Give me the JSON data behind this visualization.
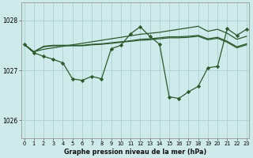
{
  "title": "Graphe pression niveau de la mer (hPa)",
  "bg_color": "#ceeaea",
  "grid_color": "#aed4d4",
  "line_color": "#2d5a2d",
  "marker_color": "#2d5a2d",
  "ylim": [
    1025.65,
    1028.35
  ],
  "yticks": [
    1026,
    1027,
    1028
  ],
  "xlim": [
    -0.3,
    23.3
  ],
  "xticks": [
    0,
    1,
    2,
    3,
    4,
    5,
    6,
    7,
    8,
    9,
    10,
    11,
    12,
    13,
    14,
    15,
    16,
    17,
    18,
    19,
    20,
    21,
    22,
    23
  ],
  "s_diagonal": [
    1027.52,
    1027.37,
    1027.42,
    1027.45,
    1027.48,
    1027.51,
    1027.54,
    1027.57,
    1027.6,
    1027.63,
    1027.66,
    1027.69,
    1027.72,
    1027.74,
    1027.76,
    1027.79,
    1027.82,
    1027.85,
    1027.88,
    1027.78,
    1027.82,
    1027.74,
    1027.62,
    1027.68
  ],
  "s_flat1": [
    1027.52,
    1027.37,
    1027.48,
    1027.5,
    1027.5,
    1027.5,
    1027.5,
    1027.52,
    1027.53,
    1027.55,
    1027.57,
    1027.59,
    1027.62,
    1027.63,
    1027.65,
    1027.67,
    1027.67,
    1027.68,
    1027.7,
    1027.63,
    1027.66,
    1027.58,
    1027.47,
    1027.53
  ],
  "s_flat2": [
    1027.52,
    1027.37,
    1027.47,
    1027.49,
    1027.49,
    1027.49,
    1027.49,
    1027.51,
    1027.52,
    1027.54,
    1027.56,
    1027.58,
    1027.6,
    1027.61,
    1027.63,
    1027.65,
    1027.65,
    1027.66,
    1027.68,
    1027.61,
    1027.64,
    1027.56,
    1027.45,
    1027.51
  ],
  "s_zigzag": [
    1027.52,
    1027.35,
    1027.28,
    1027.22,
    1027.15,
    1026.83,
    1026.8,
    1026.88,
    1026.83,
    1027.43,
    1027.5,
    1027.73,
    1027.87,
    1027.68,
    1027.52,
    1026.47,
    1026.44,
    1026.57,
    1026.68,
    1027.05,
    1027.08,
    1027.83,
    1027.7,
    1027.82
  ]
}
